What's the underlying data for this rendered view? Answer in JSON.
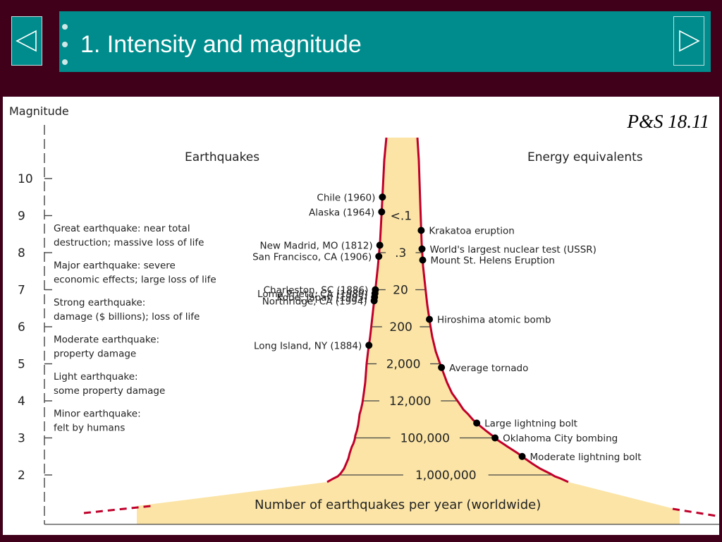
{
  "slide": {
    "title": "1. Intensity and magnitude",
    "reference": "P&S 18.11"
  },
  "nav": {
    "prev_icon": "triangle-left-icon",
    "next_icon": "triangle-right-icon"
  },
  "colors": {
    "background": "#40001a",
    "title_bar": "#008c8c",
    "curve": "#c0002b",
    "fill": "#fbe4a6"
  },
  "diagram": {
    "axis_label": "Magnitude",
    "heading_left": "Earthquakes",
    "heading_right": "Energy equivalents",
    "bottom_label": "Number of earthquakes per year (worldwide)",
    "magnitudes": [
      "10",
      "9",
      "8",
      "7",
      "6",
      "5",
      "4",
      "3",
      "2"
    ],
    "classes": [
      {
        "line1": "Great earthquake: near total",
        "line2": "destruction; massive loss of life"
      },
      {
        "line1": "Major earthquake: severe",
        "line2": "economic effects; large loss of life"
      },
      {
        "line1": "Strong earthquake:",
        "line2": "damage ($ billions); loss of life"
      },
      {
        "line1": "Moderate earthquake:",
        "line2": "property damage"
      },
      {
        "line1": "Light earthquake:",
        "line2": "some property damage"
      },
      {
        "line1": "Minor earthquake:",
        "line2": "felt by humans"
      }
    ],
    "frequencies": [
      {
        "label": "<.1",
        "magnitude": 9
      },
      {
        "label": ".3",
        "magnitude": 8
      },
      {
        "label": "20",
        "magnitude": 7
      },
      {
        "label": "200",
        "magnitude": 6
      },
      {
        "label": "2,000",
        "magnitude": 5
      },
      {
        "label": "12,000",
        "magnitude": 4
      },
      {
        "label": "100,000",
        "magnitude": 3
      },
      {
        "label": "1,000,000",
        "magnitude": 2
      }
    ],
    "earthquakes": [
      {
        "label": "Chile (1960)",
        "magnitude": 9.5
      },
      {
        "label": "Alaska (1964)",
        "magnitude": 9.1
      },
      {
        "label": "New Madrid, MO (1812)",
        "magnitude": 8.2
      },
      {
        "label": "San Francisco, CA (1906)",
        "magnitude": 7.9
      },
      {
        "label": "Charleston, SC (1886)",
        "magnitude": 7.0
      },
      {
        "label": "Loma Prieta, CA (1989)",
        "magnitude": 6.9
      },
      {
        "label": "Kobe, Japan (1995)",
        "magnitude": 6.8
      },
      {
        "label": "Northridge, CA (1994)",
        "magnitude": 6.7
      },
      {
        "label": "Long Island, NY (1884)",
        "magnitude": 5.5
      }
    ],
    "energy": [
      {
        "label": "Krakatoa eruption",
        "magnitude": 8.6
      },
      {
        "label": "World's largest nuclear test (USSR)",
        "magnitude": 8.1
      },
      {
        "label": "Mount St. Helens Eruption",
        "magnitude": 7.8
      },
      {
        "label": "Hiroshima atomic bomb",
        "magnitude": 6.2
      },
      {
        "label": "Average tornado",
        "magnitude": 4.9
      },
      {
        "label": "Large lightning bolt",
        "magnitude": 3.4
      },
      {
        "label": "Oklahoma City bombing",
        "magnitude": 3.0
      },
      {
        "label": "Moderate lightning bolt",
        "magnitude": 2.5
      }
    ]
  }
}
